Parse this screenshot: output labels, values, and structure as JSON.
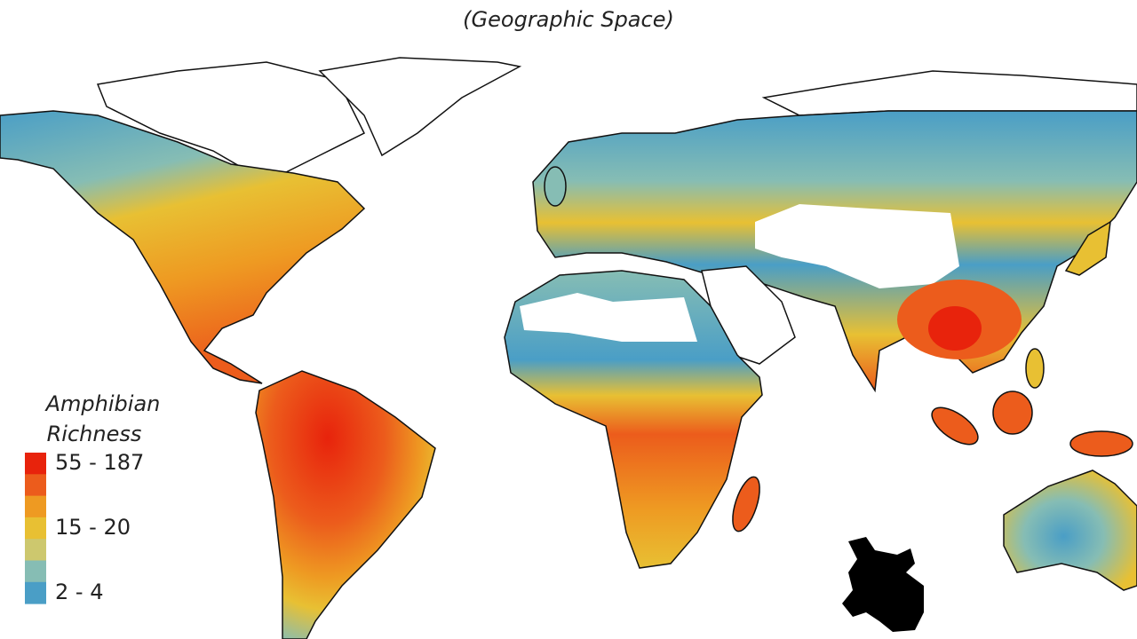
{
  "subtitle": "(Geographic Space)",
  "legend": {
    "title": [
      "Amphibian",
      "Richness"
    ],
    "items": [
      {
        "color": "#e8230c",
        "label": "55 - 187"
      },
      {
        "color": "#ec5c1c"
      },
      {
        "color": "#ee9a22"
      },
      {
        "color": "#e8c033",
        "label": "15 - 20"
      },
      {
        "color": "#cdc86e"
      },
      {
        "color": "#86bdb4"
      },
      {
        "color": "#4a9ec6",
        "label": "2 - 4"
      }
    ]
  }
}
